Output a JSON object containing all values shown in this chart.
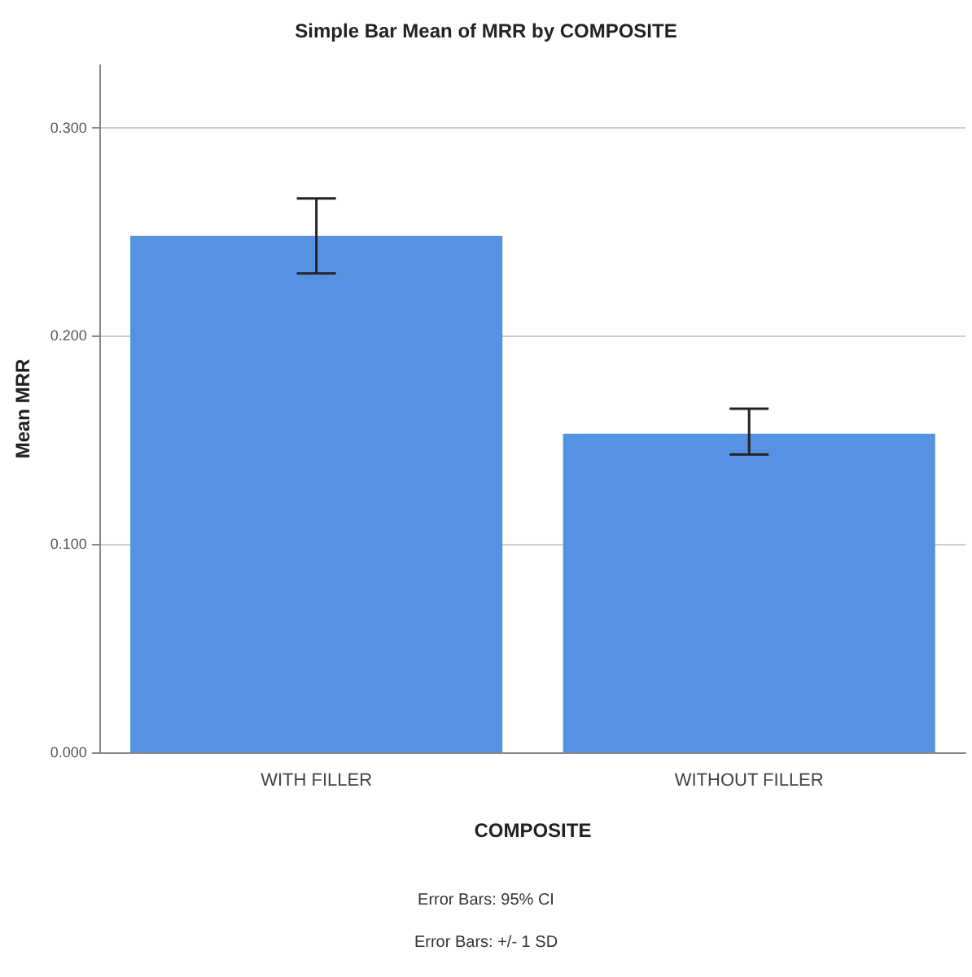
{
  "chart_data": {
    "type": "bar",
    "title": "Simple Bar Mean of MRR by COMPOSITE",
    "xlabel": "COMPOSITE",
    "ylabel": "Mean MRR",
    "categories": [
      "WITH FILLER",
      "WITHOUT FILLER"
    ],
    "values": [
      0.248,
      0.153
    ],
    "errors": [
      [
        0.23,
        0.266
      ],
      [
        0.143,
        0.165
      ]
    ],
    "color": "#5592e1",
    "ylim": [
      0,
      0.33
    ],
    "yticks": [
      {
        "value": 0,
        "label": "0.000"
      },
      {
        "value": 0.1,
        "label": "0.100"
      },
      {
        "value": 0.2,
        "label": "0.200"
      },
      {
        "value": 0.3,
        "label": "0.300"
      }
    ],
    "grid": "y",
    "annotations": [
      "Error Bars: 95% CI",
      "Error Bars: +/- 1 SD"
    ]
  }
}
